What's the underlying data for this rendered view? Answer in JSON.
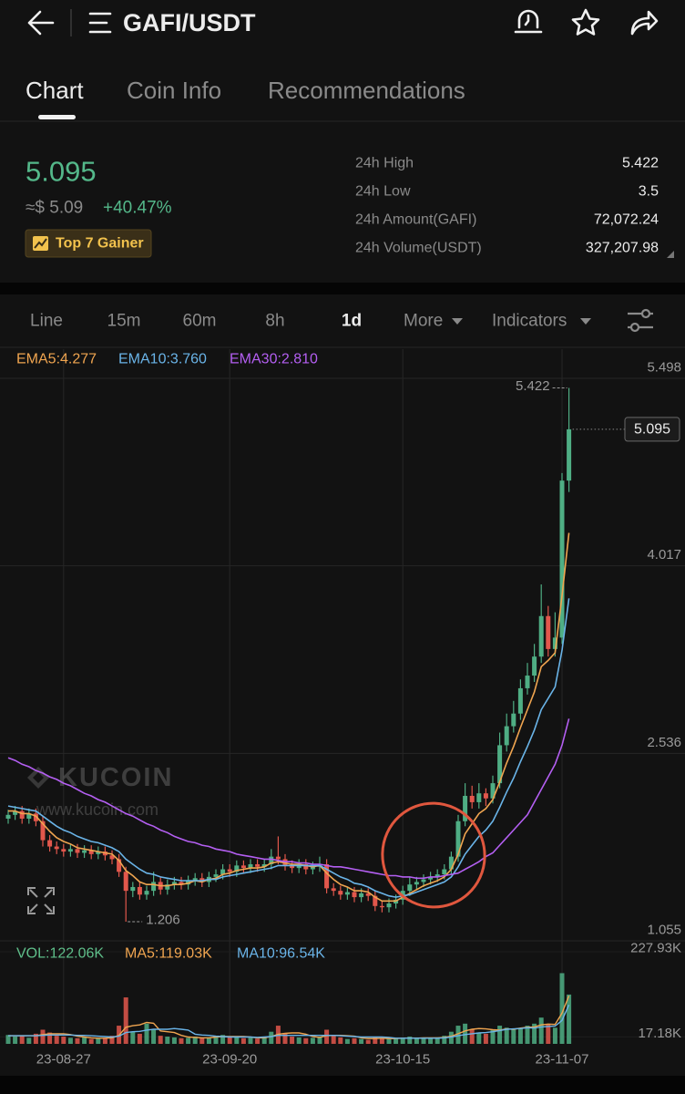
{
  "header": {
    "title": "GAFI/USDT"
  },
  "tabs": [
    "Chart",
    "Coin Info",
    "Recommendations"
  ],
  "ticker": {
    "price": "5.095",
    "usd_price": "≈$ 5.09",
    "change": "+40.47%",
    "badge": "Top 7 Gainer",
    "stats": [
      {
        "label": "24h High",
        "value": "5.422"
      },
      {
        "label": "24h Low",
        "value": "3.5"
      },
      {
        "label": "24h Amount(GAFI)",
        "value": "72,072.24"
      },
      {
        "label": "24h Volume(USDT)",
        "value": "327,207.98"
      }
    ]
  },
  "intervals": [
    "Line",
    "15m",
    "60m",
    "8h",
    "1d",
    "More",
    "Indicators"
  ],
  "watermark": {
    "brand": "KUCOIN",
    "url": "www.kucoin.com"
  },
  "chart_data": [
    {
      "type": "candlestick",
      "categories": [
        null,
        null,
        null,
        null,
        null,
        null,
        null,
        null,
        "23-08-27",
        null,
        null,
        null,
        null,
        null,
        null,
        null,
        null,
        null,
        null,
        null,
        null,
        null,
        null,
        null,
        null,
        null,
        null,
        null,
        null,
        null,
        null,
        null,
        "23-09-20",
        null,
        null,
        null,
        null,
        null,
        null,
        null,
        null,
        null,
        null,
        null,
        null,
        null,
        null,
        null,
        null,
        null,
        null,
        null,
        null,
        null,
        null,
        null,
        null,
        "23-10-15",
        null,
        null,
        null,
        null,
        null,
        null,
        null,
        null,
        null,
        null,
        null,
        null,
        null,
        null,
        null,
        null,
        null,
        null,
        null,
        null,
        null,
        null,
        "23-11-07",
        null
      ],
      "open": [
        2.02,
        2.05,
        2.08,
        2.02,
        2.06,
        2.0,
        1.85,
        1.8,
        1.78,
        1.76,
        1.78,
        1.75,
        1.77,
        1.74,
        1.76,
        1.73,
        1.7,
        1.6,
        1.45,
        1.48,
        1.42,
        1.45,
        1.52,
        1.46,
        1.5,
        1.52,
        1.5,
        1.53,
        1.55,
        1.52,
        1.56,
        1.58,
        1.62,
        1.6,
        1.65,
        1.63,
        1.66,
        1.64,
        1.66,
        1.72,
        1.7,
        1.65,
        1.63,
        1.66,
        1.62,
        1.64,
        1.66,
        1.47,
        1.45,
        1.42,
        1.44,
        1.4,
        1.43,
        1.41,
        1.33,
        1.32,
        1.35,
        1.38,
        1.45,
        1.5,
        1.52,
        1.54,
        1.56,
        1.58,
        1.62,
        1.72,
        2.0,
        2.2,
        2.15,
        2.22,
        2.18,
        2.3,
        2.6,
        2.75,
        2.85,
        3.05,
        3.15,
        3.3,
        3.62,
        3.36,
        3.45,
        4.69
      ],
      "high": [
        2.09,
        2.12,
        2.12,
        2.1,
        2.1,
        2.04,
        1.89,
        1.84,
        1.82,
        1.82,
        1.82,
        1.81,
        1.81,
        1.8,
        1.8,
        1.77,
        1.74,
        1.64,
        1.52,
        1.52,
        1.49,
        1.6,
        1.56,
        1.54,
        1.56,
        1.56,
        1.57,
        1.59,
        1.59,
        1.6,
        1.62,
        1.66,
        1.66,
        1.69,
        1.69,
        1.7,
        1.7,
        1.7,
        1.78,
        1.88,
        1.74,
        1.69,
        1.7,
        1.7,
        1.68,
        1.72,
        1.7,
        1.51,
        1.49,
        1.48,
        1.48,
        1.47,
        1.47,
        1.45,
        1.37,
        1.39,
        1.42,
        1.49,
        1.56,
        1.56,
        1.58,
        1.6,
        1.62,
        1.66,
        1.76,
        2.05,
        2.3,
        2.28,
        2.3,
        2.26,
        2.36,
        2.7,
        2.85,
        2.95,
        3.12,
        3.25,
        3.4,
        3.87,
        3.7,
        3.65,
        4.75,
        5.422
      ],
      "low": [
        1.98,
        2.01,
        1.98,
        1.98,
        1.96,
        1.8,
        1.76,
        1.74,
        1.72,
        1.72,
        1.71,
        1.71,
        1.7,
        1.7,
        1.69,
        1.66,
        1.56,
        1.206,
        1.4,
        1.38,
        1.38,
        1.41,
        1.42,
        1.42,
        1.46,
        1.46,
        1.46,
        1.49,
        1.48,
        1.48,
        1.52,
        1.54,
        1.56,
        1.56,
        1.59,
        1.59,
        1.6,
        1.6,
        1.62,
        1.66,
        1.61,
        1.59,
        1.59,
        1.58,
        1.58,
        1.6,
        1.43,
        1.41,
        1.38,
        1.38,
        1.36,
        1.36,
        1.37,
        1.29,
        1.28,
        1.28,
        1.31,
        1.34,
        1.41,
        1.46,
        1.48,
        1.5,
        1.52,
        1.54,
        1.58,
        1.68,
        1.96,
        2.1,
        2.1,
        2.12,
        2.14,
        2.26,
        2.55,
        2.7,
        2.8,
        3.0,
        3.1,
        3.25,
        3.3,
        3.3,
        3.4,
        4.6
      ],
      "close": [
        2.05,
        2.08,
        2.02,
        2.06,
        2.0,
        1.85,
        1.8,
        1.78,
        1.76,
        1.78,
        1.75,
        1.77,
        1.74,
        1.76,
        1.73,
        1.7,
        1.6,
        1.45,
        1.48,
        1.42,
        1.45,
        1.52,
        1.46,
        1.5,
        1.52,
        1.5,
        1.53,
        1.55,
        1.52,
        1.56,
        1.58,
        1.62,
        1.6,
        1.65,
        1.63,
        1.66,
        1.64,
        1.66,
        1.72,
        1.7,
        1.65,
        1.63,
        1.66,
        1.62,
        1.64,
        1.66,
        1.47,
        1.45,
        1.42,
        1.44,
        1.4,
        1.43,
        1.41,
        1.33,
        1.32,
        1.35,
        1.38,
        1.45,
        1.5,
        1.52,
        1.54,
        1.56,
        1.58,
        1.62,
        1.72,
        2.0,
        2.2,
        2.15,
        2.22,
        2.18,
        2.3,
        2.6,
        2.75,
        2.85,
        3.05,
        3.15,
        3.3,
        3.62,
        3.36,
        3.45,
        4.69,
        5.095
      ],
      "up_color": "#4fae84",
      "down_color": "#e2574c",
      "series": [
        {
          "name": "EMA5:4.277",
          "color": "#f0a550",
          "values": [
            2.08,
            2.08,
            2.06,
            2.06,
            2.04,
            1.98,
            1.92,
            1.87,
            1.84,
            1.82,
            1.79,
            1.78,
            1.77,
            1.76,
            1.75,
            1.74,
            1.69,
            1.61,
            1.57,
            1.52,
            1.5,
            1.5,
            1.49,
            1.49,
            1.5,
            1.5,
            1.51,
            1.53,
            1.52,
            1.54,
            1.55,
            1.58,
            1.59,
            1.61,
            1.62,
            1.63,
            1.63,
            1.64,
            1.67,
            1.68,
            1.67,
            1.66,
            1.66,
            1.65,
            1.64,
            1.65,
            1.59,
            1.54,
            1.5,
            1.48,
            1.45,
            1.45,
            1.44,
            1.4,
            1.37,
            1.37,
            1.37,
            1.4,
            1.43,
            1.46,
            1.49,
            1.51,
            1.53,
            1.56,
            1.62,
            1.74,
            1.9,
            1.98,
            2.06,
            2.1,
            2.17,
            2.31,
            2.46,
            2.59,
            2.74,
            2.88,
            3.02,
            3.22,
            3.27,
            3.33,
            3.78,
            4.277
          ]
        },
        {
          "name": "EMA10:3.760",
          "color": "#6ab4e8",
          "values": [
            2.12,
            2.11,
            2.1,
            2.09,
            2.08,
            2.04,
            2.0,
            1.96,
            1.93,
            1.91,
            1.88,
            1.86,
            1.84,
            1.83,
            1.81,
            1.79,
            1.76,
            1.7,
            1.66,
            1.62,
            1.59,
            1.58,
            1.56,
            1.55,
            1.54,
            1.53,
            1.53,
            1.53,
            1.53,
            1.54,
            1.54,
            1.56,
            1.57,
            1.58,
            1.59,
            1.6,
            1.61,
            1.62,
            1.63,
            1.65,
            1.65,
            1.65,
            1.65,
            1.65,
            1.65,
            1.65,
            1.62,
            1.59,
            1.56,
            1.54,
            1.51,
            1.5,
            1.48,
            1.45,
            1.43,
            1.41,
            1.4,
            1.41,
            1.42,
            1.44,
            1.46,
            1.48,
            1.5,
            1.52,
            1.56,
            1.64,
            1.74,
            1.81,
            1.88,
            1.93,
            2.0,
            2.11,
            2.23,
            2.34,
            2.47,
            2.59,
            2.72,
            2.88,
            2.97,
            3.06,
            3.35,
            3.76
          ]
        },
        {
          "name": "EMA30:2.810",
          "color": "#b45ff2",
          "values": [
            2.5,
            2.48,
            2.45,
            2.43,
            2.4,
            2.38,
            2.35,
            2.33,
            2.3,
            2.28,
            2.25,
            2.22,
            2.2,
            2.17,
            2.15,
            2.12,
            2.09,
            2.06,
            2.04,
            2.01,
            1.98,
            1.96,
            1.93,
            1.91,
            1.88,
            1.86,
            1.84,
            1.83,
            1.81,
            1.8,
            1.78,
            1.77,
            1.76,
            1.74,
            1.73,
            1.72,
            1.71,
            1.7,
            1.7,
            1.69,
            1.68,
            1.68,
            1.67,
            1.67,
            1.66,
            1.66,
            1.65,
            1.64,
            1.64,
            1.63,
            1.62,
            1.61,
            1.6,
            1.59,
            1.58,
            1.57,
            1.57,
            1.56,
            1.56,
            1.55,
            1.55,
            1.56,
            1.56,
            1.57,
            1.58,
            1.59,
            1.62,
            1.65,
            1.68,
            1.72,
            1.75,
            1.81,
            1.87,
            1.93,
            1.99,
            2.05,
            2.15,
            2.25,
            2.35,
            2.45,
            2.6,
            2.81
          ]
        }
      ],
      "ylim": [
        1.055,
        5.728
      ],
      "yticks": [
        5.498,
        4.017,
        2.536,
        1.055
      ],
      "grid": true,
      "high_marker": 5.422,
      "low_marker": 1.206,
      "last_price": 5.095
    },
    {
      "type": "bar",
      "series": [
        {
          "name": "VOL:122.06K",
          "color": "#5fbf8a",
          "values": [
            22,
            18,
            20,
            15,
            25,
            35,
            28,
            20,
            18,
            15,
            14,
            16,
            12,
            14,
            15,
            20,
            45,
            115,
            30,
            25,
            50,
            35,
            20,
            18,
            16,
            14,
            15,
            18,
            14,
            16,
            20,
            22,
            16,
            18,
            14,
            15,
            13,
            16,
            30,
            45,
            25,
            18,
            16,
            14,
            15,
            18,
            35,
            20,
            16,
            12,
            14,
            12,
            10,
            18,
            14,
            12,
            13,
            15,
            18,
            14,
            13,
            15,
            16,
            20,
            30,
            45,
            50,
            35,
            28,
            25,
            35,
            45,
            40,
            35,
            38,
            45,
            50,
            65,
            48,
            40,
            175,
            122.06
          ]
        },
        {
          "name": "MA5:119.03K",
          "color": "#f0a550",
          "values": [
            20,
            20,
            20,
            20,
            20,
            23,
            25,
            25,
            25,
            23,
            19,
            17,
            15,
            14,
            14,
            15,
            21,
            41,
            45,
            47,
            53,
            51,
            32,
            30,
            28,
            21,
            17,
            16,
            15,
            15,
            17,
            18,
            18,
            18,
            18,
            17,
            15,
            15,
            18,
            24,
            26,
            27,
            27,
            24,
            18,
            16,
            20,
            21,
            21,
            20,
            19,
            15,
            13,
            13,
            14,
            13,
            13,
            14,
            14,
            14,
            15,
            15,
            15,
            16,
            19,
            25,
            32,
            36,
            38,
            37,
            35,
            34,
            37,
            36,
            39,
            41,
            42,
            47,
            49,
            48,
            76,
            119.03
          ]
        },
        {
          "name": "MA10:96.54K",
          "color": "#6ab4e8",
          "values": [
            20,
            20,
            20,
            20,
            20,
            21,
            22,
            22,
            22,
            22,
            21,
            21,
            20,
            19,
            18,
            17,
            19,
            28,
            30,
            31,
            34,
            36,
            36,
            36,
            38,
            36,
            34,
            24,
            22,
            21,
            19,
            18,
            17,
            17,
            17,
            17,
            16,
            17,
            18,
            21,
            21,
            21,
            21,
            21,
            21,
            21,
            21,
            21,
            20,
            19,
            18,
            17,
            17,
            17,
            17,
            16,
            14,
            14,
            14,
            14,
            14,
            14,
            14,
            15,
            17,
            20,
            23,
            25,
            27,
            28,
            30,
            33,
            36,
            37,
            38,
            40,
            39,
            42,
            43,
            44,
            58,
            96.54
          ]
        }
      ],
      "ylim": [
        0,
        227.93
      ],
      "yticks": [
        {
          "value": 227.93,
          "label": "227.93K"
        },
        {
          "value": 17.18,
          "label": "17.18K"
        }
      ]
    }
  ]
}
